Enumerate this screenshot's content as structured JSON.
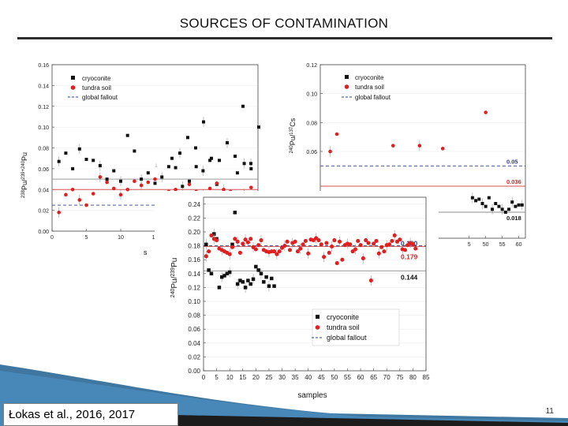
{
  "slide": {
    "title": "SOURCES OF CONTAMINATION",
    "citation": "Łokas et al., 2016, 2017",
    "page_number": "11"
  },
  "colors": {
    "cryoconite": "#111111",
    "tundra_soil": "#e02020",
    "global_fallout": "#2b3f8f",
    "cryoconite_line": "#8c8c8c",
    "tundra_line": "#d05050"
  },
  "chart_data": [
    {
      "id": "top-left",
      "type": "scatter",
      "ylabel_main": "Pu",
      "ylabel_sup1": "238",
      "ylabel_sup2": "239+240",
      "xlabel": "s",
      "xlim": [
        0,
        30
      ],
      "ylim": [
        0,
        0.16
      ],
      "y_ticks": [
        "0.00",
        "0.02",
        "0.04",
        "0.06",
        "0.08",
        "0.10",
        "0.12",
        "0.14",
        "0.16"
      ],
      "x_ticks": [
        "0",
        "5",
        "10",
        "15",
        "20",
        "2"
      ],
      "legend": [
        "cryoconite",
        "tundra soil",
        "global fallout"
      ],
      "reference_lines": {
        "global_fallout": 0.025,
        "tundra_soil": 0.04,
        "cryoconite": 0.05
      },
      "series": [
        {
          "name": "cryoconite",
          "x": [
            1,
            2,
            3,
            4,
            5,
            6,
            7,
            8,
            9,
            10,
            11,
            12,
            13,
            14,
            15,
            16,
            17,
            18,
            19,
            20,
            21,
            22,
            23,
            24,
            25,
            26,
            27,
            28,
            29
          ],
          "y": [
            0.067,
            0.075,
            0.06,
            0.079,
            0.069,
            0.068,
            0.063,
            0.05,
            0.058,
            0.048,
            0.092,
            0.077,
            0.05,
            0.056,
            0.046,
            0.052,
            0.062,
            0.061,
            0.043,
            0.048,
            0.062,
            0.058,
            0.068,
            0.045,
            0.036,
            0.032,
            0.056,
            0.065,
            0.06
          ]
        },
        {
          "name": "tundra soil",
          "x": [
            1,
            2,
            3,
            4,
            5,
            6,
            7,
            8,
            9,
            10,
            11,
            12,
            13,
            14,
            15,
            16,
            17,
            18,
            19,
            20,
            21,
            22,
            23,
            24,
            25,
            26,
            27,
            28,
            29
          ],
          "y": [
            0.018,
            0.035,
            0.04,
            0.03,
            0.025,
            0.036,
            0.052,
            0.047,
            0.041,
            0.035,
            0.04,
            0.048,
            0.044,
            0.047,
            0.05,
            0.028,
            0.038,
            0.04,
            0.032,
            0.045,
            0.038,
            0.035,
            0.041,
            0.046,
            0.04,
            0.038,
            0.032,
            0.036,
            0.042
          ]
        }
      ]
    },
    {
      "id": "top-middle",
      "type": "scatter",
      "xlim": [
        30,
        60
      ],
      "ylim": [
        0,
        0.16
      ],
      "series": [
        {
          "name": "cryoconite",
          "x": [
            32,
            34,
            36,
            38,
            40,
            42,
            44,
            46,
            48,
            50,
            52,
            54,
            56,
            58
          ],
          "y": [
            0.06,
            0.055,
            0.07,
            0.075,
            0.09,
            0.08,
            0.105,
            0.07,
            0.068,
            0.085,
            0.072,
            0.12,
            0.065,
            0.1
          ]
        }
      ]
    },
    {
      "id": "top-right",
      "type": "scatter",
      "ylabel_main": "Cs",
      "ylabel_sup1": "240",
      "ylabel_sup2": "137",
      "ylabel_pu": "Pu/",
      "xlim": [
        0,
        62
      ],
      "ylim": [
        0,
        0.12
      ],
      "y_ticks": [
        "0.06",
        "0.08",
        "0.10",
        "0.12"
      ],
      "x_ticks": [
        "5",
        "50",
        "55",
        "60"
      ],
      "legend": [
        "cryoconite",
        "tundra soil",
        "global fallout"
      ],
      "reference_lines": {
        "global_fallout": 0.05,
        "tundra_soil": 0.036,
        "cryoconite": 0.018
      },
      "line_labels": [
        "0.05",
        "0.036",
        "0.018"
      ],
      "series": [
        {
          "name": "tundra soil",
          "x": [
            3,
            5,
            22,
            30,
            37,
            50
          ],
          "y": [
            0.06,
            0.072,
            0.064,
            0.064,
            0.062,
            0.087
          ]
        },
        {
          "name": "cryoconite",
          "x": [
            46,
            47,
            48,
            49,
            50,
            51,
            52,
            53,
            54,
            55,
            56,
            57,
            58,
            59,
            60,
            61
          ],
          "y": [
            0.028,
            0.026,
            0.027,
            0.024,
            0.022,
            0.028,
            0.02,
            0.024,
            0.022,
            0.02,
            0.018,
            0.02,
            0.025,
            0.022,
            0.023,
            0.023
          ]
        }
      ]
    },
    {
      "id": "main",
      "type": "scatter",
      "ylabel_main": "Pu",
      "ylabel_sup1": "240",
      "ylabel_sup2": "239",
      "xlabel": "samples",
      "xlim": [
        0,
        85
      ],
      "ylim": [
        0,
        0.25
      ],
      "y_ticks": [
        "0.00",
        "0.02",
        "0.04",
        "0.06",
        "0.08",
        "0.10",
        "0.12",
        "0.14",
        "0.16",
        "0.18",
        "0.20",
        "0.22",
        "0.24"
      ],
      "x_ticks": [
        "0",
        "5",
        "10",
        "15",
        "20",
        "25",
        "30",
        "35",
        "40",
        "45",
        "50",
        "55",
        "60",
        "65",
        "70",
        "75",
        "80",
        "85"
      ],
      "legend": [
        "cryoconite",
        "tundra soil",
        "global fallout"
      ],
      "reference_lines": {
        "global_fallout": 0.18,
        "tundra_soil": 0.179,
        "cryoconite": 0.144
      },
      "line_labels": [
        "0.180",
        "0.179",
        "0.144"
      ],
      "series": [
        {
          "name": "cryoconite",
          "x": [
            1,
            2,
            3,
            4,
            5,
            6,
            7,
            8,
            9,
            10,
            11,
            12,
            13,
            14,
            15,
            16,
            17,
            18,
            19,
            20,
            21,
            22,
            23,
            24,
            25,
            26,
            27
          ],
          "y": [
            0.182,
            0.145,
            0.14,
            0.197,
            0.19,
            0.12,
            0.135,
            0.137,
            0.14,
            0.142,
            0.182,
            0.228,
            0.125,
            0.13,
            0.128,
            0.12,
            0.13,
            0.125,
            0.132,
            0.15,
            0.145,
            0.14,
            0.128,
            0.135,
            0.122,
            0.133,
            0.122
          ]
        },
        {
          "name": "tundra soil",
          "x": [
            1,
            2,
            3,
            4,
            5,
            6,
            7,
            8,
            9,
            10,
            11,
            12,
            13,
            14,
            15,
            16,
            17,
            18,
            19,
            20,
            21,
            22,
            23,
            24,
            25,
            26,
            27,
            28,
            29,
            30,
            31,
            32,
            33,
            34,
            35,
            36,
            37,
            38,
            39,
            40,
            41,
            42,
            43,
            44,
            45,
            46,
            47,
            48,
            49,
            50,
            51,
            52,
            53,
            54,
            55,
            56,
            57,
            58,
            59,
            60,
            61,
            62,
            63,
            64,
            65,
            66,
            67,
            68,
            69,
            70,
            71,
            72,
            73,
            74,
            75,
            76,
            77,
            78,
            79,
            80,
            81
          ],
          "y": [
            0.165,
            0.172,
            0.195,
            0.19,
            0.188,
            0.176,
            0.174,
            0.172,
            0.17,
            0.168,
            0.178,
            0.19,
            0.186,
            0.17,
            0.183,
            0.189,
            0.185,
            0.19,
            0.178,
            0.175,
            0.181,
            0.188,
            0.174,
            0.172,
            0.171,
            0.172,
            0.172,
            0.168,
            0.172,
            0.177,
            0.18,
            0.186,
            0.174,
            0.184,
            0.186,
            0.172,
            0.176,
            0.182,
            0.187,
            0.169,
            0.189,
            0.188,
            0.191,
            0.188,
            0.182,
            0.164,
            0.184,
            0.17,
            0.179,
            0.188,
            0.155,
            0.186,
            0.16,
            0.181,
            0.183,
            0.182,
            0.172,
            0.175,
            0.187,
            0.181,
            0.162,
            0.188,
            0.184,
            0.13,
            0.183,
            0.187,
            0.169,
            0.178,
            0.172,
            0.181,
            0.182,
            0.187,
            0.195,
            0.186,
            0.189,
            0.175,
            0.174,
            0.181,
            0.184,
            0.182,
            0.176
          ]
        }
      ]
    }
  ]
}
